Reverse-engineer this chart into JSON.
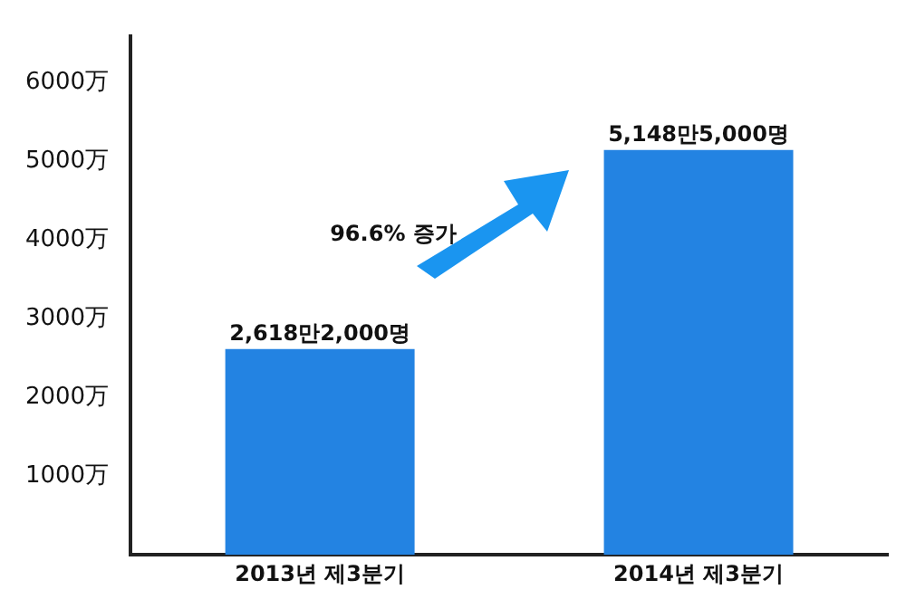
{
  "chart_data": {
    "type": "bar",
    "categories": [
      "2013년 제3분기",
      "2014년 제3분기"
    ],
    "values": [
      2618.2,
      5148.5
    ],
    "color": "#2383e2",
    "value_labels": [
      "2,618만2,000명",
      "5,148만5,000명"
    ],
    "ylim": [
      0,
      6600
    ],
    "yticks": [
      {
        "value": 1000,
        "label": "1000万"
      },
      {
        "value": 2000,
        "label": "2000万"
      },
      {
        "value": 3000,
        "label": "3000万"
      },
      {
        "value": 4000,
        "label": "4000万"
      },
      {
        "value": 5000,
        "label": "5000万"
      },
      {
        "value": 6000,
        "label": "6000万"
      }
    ],
    "annotations": [
      "96.6% 증가"
    ],
    "grid": false,
    "legend": false
  }
}
